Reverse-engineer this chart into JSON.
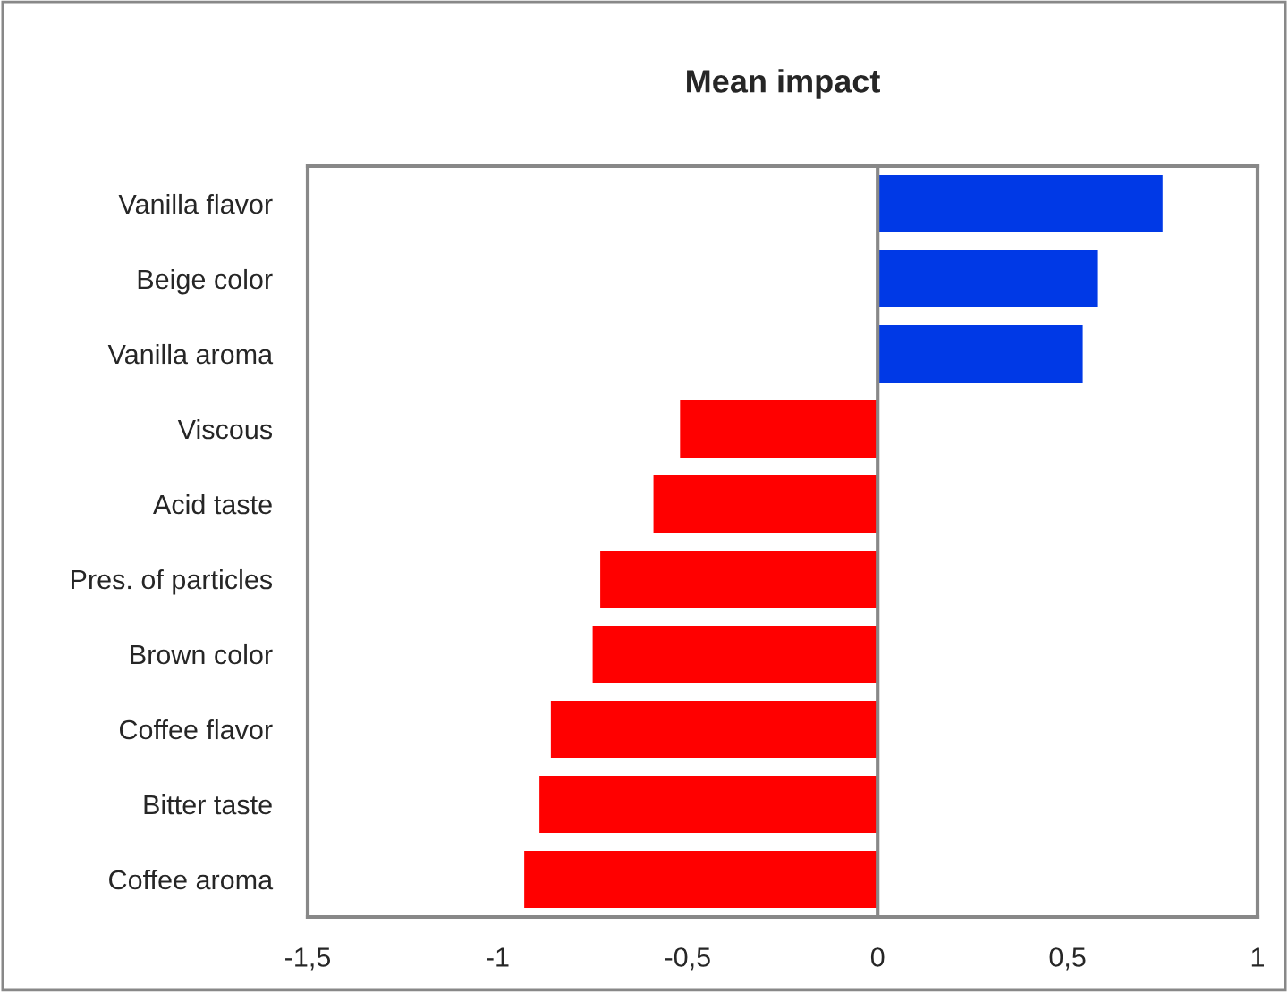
{
  "chart_data": {
    "type": "bar",
    "orientation": "horizontal",
    "title": "Mean impact",
    "categories": [
      "Vanilla flavor",
      "Beige color",
      "Vanilla aroma",
      "Viscous",
      "Acid taste",
      "Pres. of particles",
      "Brown color",
      "Coffee flavor",
      "Bitter taste",
      "Coffee aroma"
    ],
    "values": [
      0.75,
      0.58,
      0.54,
      -0.52,
      -0.59,
      -0.73,
      -0.75,
      -0.86,
      -0.89,
      -0.93
    ],
    "colors": [
      "#0039e6",
      "#0039e6",
      "#0039e6",
      "#ff0000",
      "#ff0000",
      "#ff0000",
      "#ff0000",
      "#ff0000",
      "#ff0000",
      "#ff0000"
    ],
    "xlim": [
      -1.5,
      1
    ],
    "xticks": [
      {
        "value": -1.5,
        "label": "-1,5"
      },
      {
        "value": -1,
        "label": "-1"
      },
      {
        "value": -0.5,
        "label": "-0,5"
      },
      {
        "value": 0,
        "label": "0"
      },
      {
        "value": 0.5,
        "label": "0,5"
      },
      {
        "value": 1,
        "label": "1"
      }
    ],
    "legend": false
  }
}
